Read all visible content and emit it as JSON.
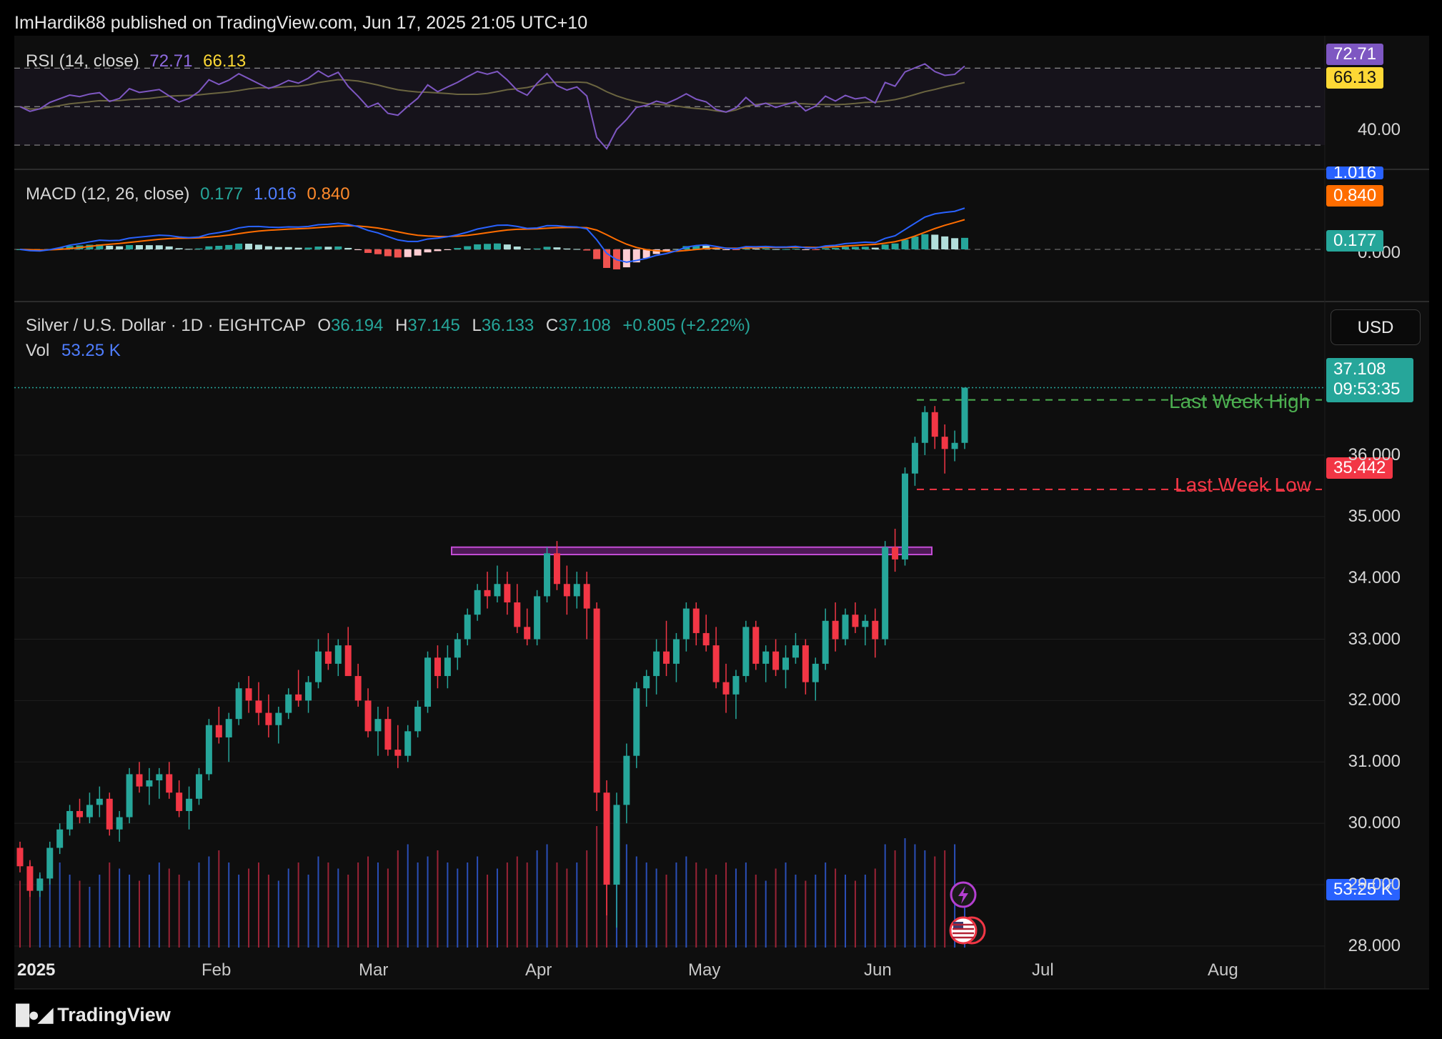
{
  "header": {
    "published": "ImHardik88 published on TradingView.com, Jun 17, 2025 21:05 UTC+10"
  },
  "rsi": {
    "title": "RSI (14, close)",
    "value": "72.71",
    "ma_value": "66.13",
    "axis_label": "40.00",
    "colors": {
      "rsi": "#7e57c2",
      "ma": "#fdd835"
    }
  },
  "macd": {
    "title": "MACD (12, 26, close)",
    "hist": "0.177",
    "macd": "1.016",
    "signal": "0.840",
    "axis_label": "0.000",
    "colors": {
      "macd": "#2962ff",
      "signal": "#ff6d00",
      "hist_pos": "#26a69a",
      "hist_neg": "#ef5350"
    }
  },
  "main": {
    "symbol": "Silver / U.S. Dollar · 1D · EIGHTCAP",
    "o_label": "O",
    "o": "36.194",
    "h_label": "H",
    "h": "37.145",
    "l_label": "L",
    "l": "36.133",
    "c_label": "C",
    "c": "37.108",
    "change": "+0.805 (+2.22%)",
    "vol_label": "Vol",
    "vol": "53.25 K",
    "currency": "USD",
    "price_tag": "37.108",
    "countdown": "09:53:35",
    "low_tag": "35.442",
    "vol_tag": "53.25 K",
    "annotations": {
      "high": "Last Week High",
      "low": "Last Week Low"
    },
    "colors": {
      "up": "#26a69a",
      "down": "#f23645",
      "zone": "#9c27b0",
      "high_line": "#4caf50",
      "low_line": "#f23645"
    }
  },
  "chart_data": {
    "type": "candlestick",
    "x_axis_labels": [
      "2025",
      "Feb",
      "Mar",
      "Apr",
      "May",
      "Jun",
      "Jul",
      "Aug"
    ],
    "y_axis_labels": [
      "36.000",
      "35.000",
      "34.000",
      "33.000",
      "32.000",
      "31.000",
      "30.000",
      "29.000",
      "28.000"
    ],
    "ylim": [
      27.3,
      38.2
    ],
    "rsi_ylim": [
      20,
      85
    ],
    "macd_ylim": [
      -1.2,
      1.8
    ],
    "resistance_zone": [
      34.38,
      34.5
    ],
    "last_week_high": 36.9,
    "last_week_low": 35.442,
    "candles_ohlc": [
      [
        29.6,
        29.7,
        29.2,
        29.3
      ],
      [
        29.3,
        29.4,
        28.8,
        28.9
      ],
      [
        28.9,
        29.2,
        28.8,
        29.1
      ],
      [
        29.1,
        29.7,
        29.0,
        29.6
      ],
      [
        29.6,
        30.0,
        29.5,
        29.9
      ],
      [
        29.9,
        30.3,
        29.8,
        30.2
      ],
      [
        30.2,
        30.4,
        30.0,
        30.1
      ],
      [
        30.1,
        30.5,
        30.0,
        30.3
      ],
      [
        30.3,
        30.6,
        30.1,
        30.4
      ],
      [
        30.4,
        30.5,
        29.8,
        29.9
      ],
      [
        29.9,
        30.2,
        29.7,
        30.1
      ],
      [
        30.1,
        30.9,
        30.0,
        30.8
      ],
      [
        30.8,
        31.0,
        30.5,
        30.6
      ],
      [
        30.6,
        30.9,
        30.3,
        30.7
      ],
      [
        30.7,
        30.9,
        30.4,
        30.8
      ],
      [
        30.8,
        31.0,
        30.4,
        30.5
      ],
      [
        30.5,
        30.7,
        30.1,
        30.2
      ],
      [
        30.2,
        30.6,
        29.9,
        30.4
      ],
      [
        30.4,
        30.9,
        30.3,
        30.8
      ],
      [
        30.8,
        31.7,
        30.7,
        31.6
      ],
      [
        31.6,
        31.9,
        31.3,
        31.4
      ],
      [
        31.4,
        31.8,
        31.0,
        31.7
      ],
      [
        31.7,
        32.3,
        31.6,
        32.2
      ],
      [
        32.2,
        32.4,
        31.8,
        32.0
      ],
      [
        32.0,
        32.3,
        31.6,
        31.8
      ],
      [
        31.8,
        32.1,
        31.4,
        31.6
      ],
      [
        31.6,
        31.9,
        31.3,
        31.8
      ],
      [
        31.8,
        32.2,
        31.7,
        32.1
      ],
      [
        32.1,
        32.5,
        31.9,
        32.0
      ],
      [
        32.0,
        32.4,
        31.8,
        32.3
      ],
      [
        32.3,
        33.0,
        32.2,
        32.8
      ],
      [
        32.8,
        33.1,
        32.5,
        32.6
      ],
      [
        32.6,
        33.0,
        32.4,
        32.9
      ],
      [
        32.9,
        33.2,
        32.6,
        32.4
      ],
      [
        32.4,
        32.6,
        31.9,
        32.0
      ],
      [
        32.0,
        32.2,
        31.4,
        31.5
      ],
      [
        31.5,
        31.9,
        31.1,
        31.7
      ],
      [
        31.7,
        31.9,
        31.1,
        31.2
      ],
      [
        31.2,
        31.6,
        30.9,
        31.1
      ],
      [
        31.1,
        31.6,
        31.0,
        31.5
      ],
      [
        31.5,
        32.0,
        31.4,
        31.9
      ],
      [
        31.9,
        32.8,
        31.8,
        32.7
      ],
      [
        32.7,
        32.9,
        32.2,
        32.4
      ],
      [
        32.4,
        32.9,
        32.2,
        32.7
      ],
      [
        32.7,
        33.1,
        32.5,
        33.0
      ],
      [
        33.0,
        33.5,
        32.9,
        33.4
      ],
      [
        33.4,
        33.9,
        33.3,
        33.8
      ],
      [
        33.8,
        34.1,
        33.5,
        33.7
      ],
      [
        33.7,
        34.2,
        33.6,
        33.9
      ],
      [
        33.9,
        34.1,
        33.4,
        33.6
      ],
      [
        33.6,
        33.9,
        33.1,
        33.2
      ],
      [
        33.2,
        33.5,
        32.9,
        33.0
      ],
      [
        33.0,
        33.8,
        32.9,
        33.7
      ],
      [
        33.7,
        34.5,
        33.6,
        34.4
      ],
      [
        34.4,
        34.6,
        33.8,
        33.9
      ],
      [
        33.9,
        34.2,
        33.4,
        33.7
      ],
      [
        33.7,
        34.1,
        33.5,
        33.9
      ],
      [
        33.9,
        34.1,
        33.0,
        33.5
      ],
      [
        33.5,
        33.6,
        30.2,
        30.5
      ],
      [
        30.5,
        30.7,
        28.5,
        29.0
      ],
      [
        29.0,
        30.5,
        28.3,
        30.3
      ],
      [
        30.3,
        31.3,
        30.0,
        31.1
      ],
      [
        31.1,
        32.3,
        30.9,
        32.2
      ],
      [
        32.2,
        32.5,
        31.9,
        32.4
      ],
      [
        32.4,
        33.0,
        32.1,
        32.8
      ],
      [
        32.8,
        33.3,
        32.4,
        32.6
      ],
      [
        32.6,
        33.1,
        32.3,
        33.0
      ],
      [
        33.0,
        33.6,
        32.8,
        33.5
      ],
      [
        33.5,
        33.6,
        32.9,
        33.1
      ],
      [
        33.1,
        33.4,
        32.8,
        32.9
      ],
      [
        32.9,
        33.2,
        32.2,
        32.3
      ],
      [
        32.3,
        32.6,
        31.8,
        32.1
      ],
      [
        32.1,
        32.5,
        31.7,
        32.4
      ],
      [
        32.4,
        33.3,
        32.3,
        33.2
      ],
      [
        33.2,
        33.3,
        32.5,
        32.6
      ],
      [
        32.6,
        32.9,
        32.3,
        32.8
      ],
      [
        32.8,
        33.0,
        32.4,
        32.5
      ],
      [
        32.5,
        32.9,
        32.2,
        32.7
      ],
      [
        32.7,
        33.1,
        32.6,
        32.9
      ],
      [
        32.9,
        33.0,
        32.1,
        32.3
      ],
      [
        32.3,
        32.7,
        32.0,
        32.6
      ],
      [
        32.6,
        33.5,
        32.5,
        33.3
      ],
      [
        33.3,
        33.6,
        32.8,
        33.0
      ],
      [
        33.0,
        33.5,
        32.9,
        33.4
      ],
      [
        33.4,
        33.6,
        33.1,
        33.2
      ],
      [
        33.2,
        33.4,
        32.9,
        33.3
      ],
      [
        33.3,
        33.5,
        32.7,
        33.0
      ],
      [
        33.0,
        34.6,
        32.9,
        34.5
      ],
      [
        34.5,
        34.8,
        34.1,
        34.3
      ],
      [
        34.3,
        35.8,
        34.2,
        35.7
      ],
      [
        35.7,
        36.3,
        35.5,
        36.2
      ],
      [
        36.2,
        36.8,
        36.0,
        36.7
      ],
      [
        36.7,
        36.8,
        36.1,
        36.3
      ],
      [
        36.3,
        36.5,
        35.7,
        36.1
      ],
      [
        36.1,
        36.4,
        35.9,
        36.2
      ],
      [
        36.2,
        37.1,
        36.1,
        37.1
      ]
    ],
    "volume_rel": [
      0.55,
      0.7,
      0.6,
      0.65,
      0.7,
      0.6,
      0.55,
      0.5,
      0.6,
      0.7,
      0.65,
      0.6,
      0.55,
      0.6,
      0.7,
      0.65,
      0.6,
      0.55,
      0.7,
      0.75,
      0.8,
      0.7,
      0.6,
      0.65,
      0.7,
      0.6,
      0.55,
      0.65,
      0.7,
      0.6,
      0.75,
      0.7,
      0.65,
      0.6,
      0.7,
      0.75,
      0.7,
      0.65,
      0.8,
      0.85,
      0.7,
      0.75,
      0.8,
      0.7,
      0.65,
      0.7,
      0.75,
      0.6,
      0.65,
      0.7,
      0.75,
      0.7,
      0.8,
      0.85,
      0.7,
      0.65,
      0.7,
      0.8,
      1.0,
      1.0,
      0.95,
      0.85,
      0.75,
      0.7,
      0.65,
      0.6,
      0.7,
      0.75,
      0.7,
      0.65,
      0.6,
      0.7,
      0.65,
      0.7,
      0.6,
      0.55,
      0.65,
      0.7,
      0.6,
      0.55,
      0.6,
      0.7,
      0.65,
      0.6,
      0.55,
      0.6,
      0.65,
      0.85,
      0.8,
      0.9,
      0.85,
      0.8,
      0.75,
      0.8,
      0.85,
      0.45
    ]
  }
}
